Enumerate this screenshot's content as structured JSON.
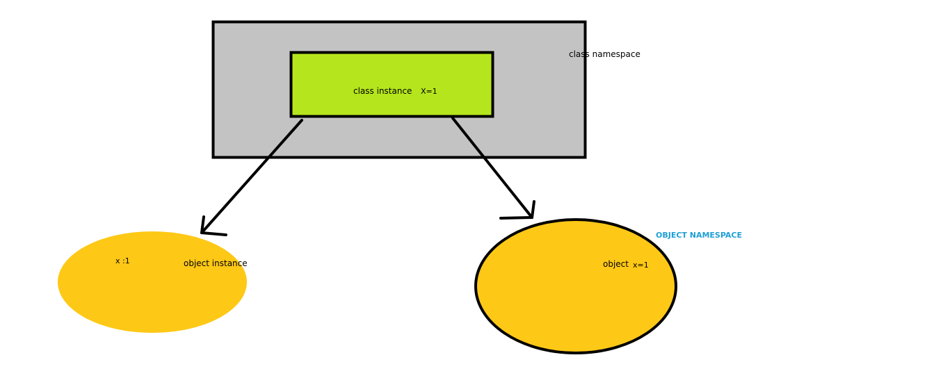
{
  "class_namespace": {
    "label": "class namespace",
    "fill": "#c3c3c3"
  },
  "class_instance": {
    "label": "class instance",
    "value": "X=1",
    "fill": "#b5e61d"
  },
  "object_instance": {
    "value": "x :1",
    "label": "object instance",
    "fill": "#fec816"
  },
  "object": {
    "label": "object",
    "value": "x=1",
    "fill": "#fec816"
  },
  "object_namespace": {
    "label": "OBJECT NAMESPACE",
    "color": "#1e9fd6"
  }
}
